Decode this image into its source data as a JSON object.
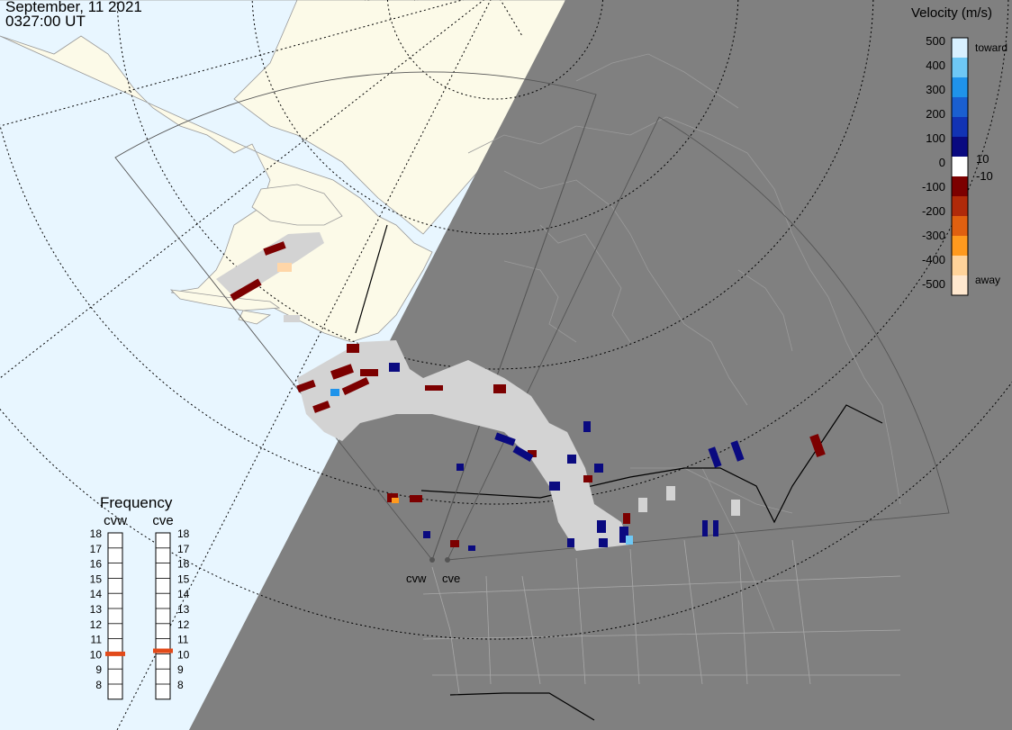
{
  "header": {
    "date": "September, 11 2021",
    "time": "0327:00 UT"
  },
  "velocity_scale": {
    "title": "Velocity (m/s)",
    "labels": [
      "500",
      "400",
      "300",
      "200",
      "100",
      "10",
      "0",
      "-10",
      "-100",
      "-200",
      "-300",
      "-400",
      "-500"
    ],
    "toward": "toward",
    "away": "away",
    "colors": [
      "#ffe8cf",
      "#ffd39a",
      "#ff9a1e",
      "#e06010",
      "#b02a0a",
      "#7c0000",
      "#ffffff",
      "#0a0a80",
      "#1233b4",
      "#1a5fd0",
      "#1f93ea",
      "#6ec8f5",
      "#d8f0ff"
    ]
  },
  "frequency_panel": {
    "title": "Frequency",
    "radars": [
      "cvw",
      "cve"
    ],
    "levels": [
      "18",
      "17",
      "16",
      "15",
      "14",
      "13",
      "12",
      "11",
      "10",
      "9",
      "8"
    ],
    "cvw_value_mhz": 10.5,
    "cve_value_mhz": 10.7,
    "marker_color": "#e24a1a"
  },
  "map": {
    "radar_sites": [
      "cvw",
      "cve"
    ],
    "night_shade_color": "#808080",
    "ocean_color": "#e8f6ff",
    "land_color": "#fcfae8"
  }
}
